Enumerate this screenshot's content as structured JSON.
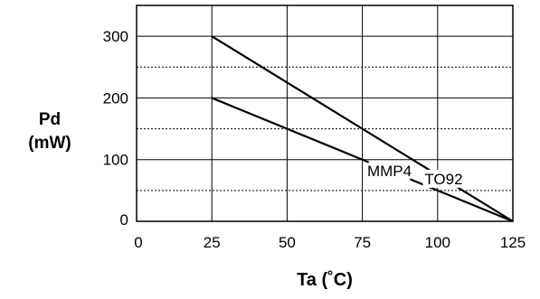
{
  "chart_data": {
    "type": "line",
    "xlabel": "Ta (˚C)",
    "ylabel_line1": "Pd",
    "ylabel_line2": "(mW)",
    "xlim": [
      0,
      125
    ],
    "ylim": [
      0,
      350
    ],
    "x_ticks": [
      "0",
      "25",
      "50",
      "75",
      "100",
      "125"
    ],
    "y_ticks": [
      "0",
      "100",
      "200",
      "300"
    ],
    "x_tick_values": [
      0,
      25,
      50,
      75,
      100,
      125
    ],
    "y_tick_values": [
      0,
      100,
      200,
      300
    ],
    "dotted_gridlines_y": [
      50,
      150,
      250
    ],
    "solid_gridlines_x": [
      25,
      50,
      75,
      100
    ],
    "solid_gridlines_y": [
      100,
      200,
      300
    ],
    "series": [
      {
        "name": "TO92",
        "x": [
          25,
          125
        ],
        "y": [
          300,
          0
        ]
      },
      {
        "name": "MMP4",
        "x": [
          25,
          125
        ],
        "y": [
          200,
          0
        ]
      }
    ],
    "annotations": [
      {
        "text": "TO92",
        "series": "TO92"
      },
      {
        "text": "MMP4",
        "series": "MMP4"
      }
    ]
  }
}
